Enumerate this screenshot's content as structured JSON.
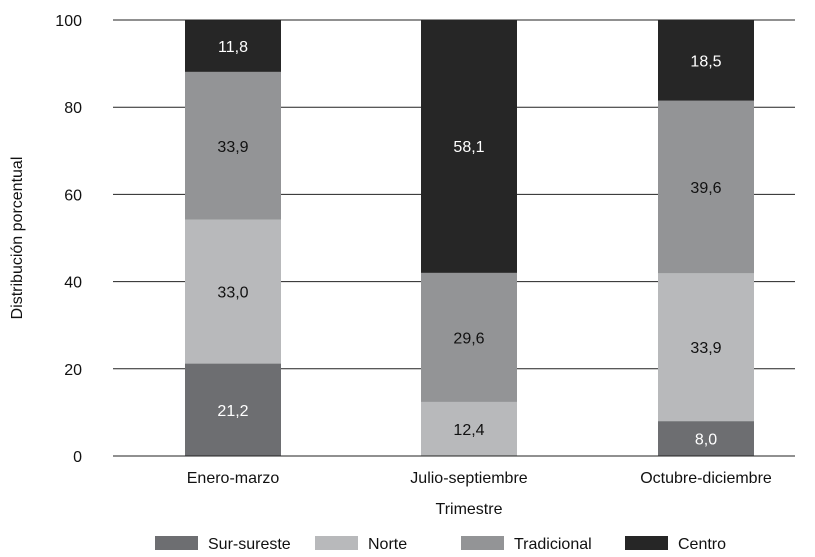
{
  "chart_data": {
    "type": "bar",
    "stacked": true,
    "title": "",
    "xlabel": "Trimestre",
    "ylabel": "Distribución porcentual",
    "ylim": [
      0,
      100
    ],
    "yticks": [
      0,
      20,
      40,
      60,
      80,
      100
    ],
    "grid": "horizontal",
    "legend_position": "bottom",
    "categories": [
      "Enero-marzo",
      "Julio-septiembre",
      "Octubre-diciembre"
    ],
    "series": [
      {
        "name": "Sur-sureste",
        "color": "#6d6e71",
        "label_color": "#ffffff",
        "values": [
          21.2,
          0,
          8.0
        ],
        "labels": [
          "21,2",
          "",
          "8,0"
        ]
      },
      {
        "name": "Norte",
        "color": "#b8b9bb",
        "label_color": "#111111",
        "values": [
          33.0,
          12.4,
          33.9
        ],
        "labels": [
          "33,0",
          "12,4",
          "33,9"
        ]
      },
      {
        "name": "Tradicional",
        "color": "#939496",
        "label_color": "#111111",
        "values": [
          33.9,
          29.6,
          39.6
        ],
        "labels": [
          "33,9",
          "29,6",
          "39,6"
        ]
      },
      {
        "name": "Centro",
        "color": "#262626",
        "label_color": "#ffffff",
        "values": [
          11.8,
          58.1,
          18.5
        ],
        "labels": [
          "11,8",
          "58,1",
          "18,5"
        ]
      }
    ]
  }
}
